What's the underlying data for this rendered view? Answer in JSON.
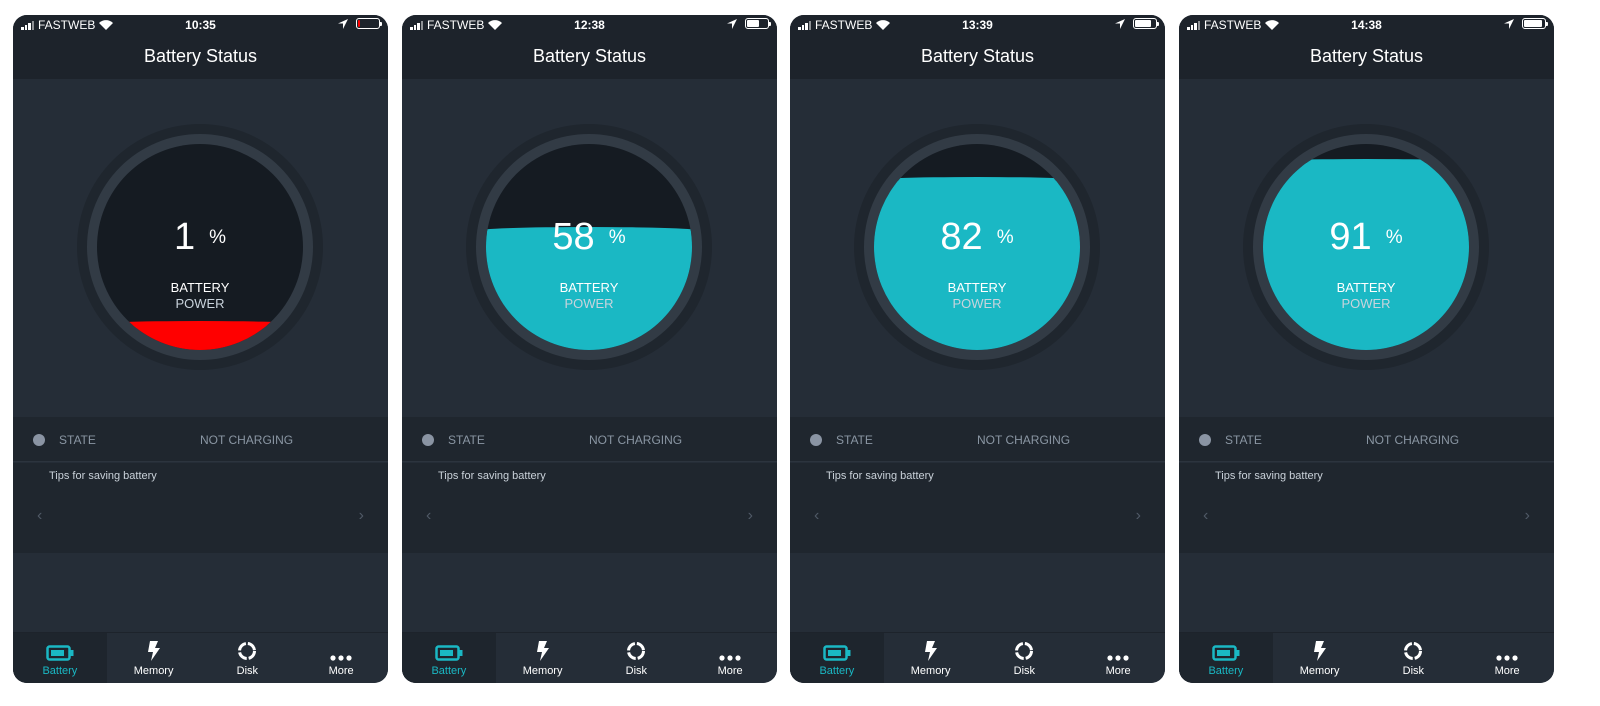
{
  "colors": {
    "accent": "#1ab8c4",
    "critical": "#ff0000",
    "background": "#252d37",
    "header": "#1d232b"
  },
  "phones": [
    {
      "carrier": "FASTWEB",
      "time": "10:35",
      "title": "Battery Status",
      "percent": 1,
      "percent_sign": "%",
      "label1": "BATTERY",
      "label2": "POWER",
      "fill_color": "#ff0000",
      "state_label": "STATE",
      "state_value": "NOT CHARGING",
      "tips": "Tips for saving battery",
      "prev": "‹",
      "next": "›",
      "tabs": [
        {
          "label": "Battery",
          "icon": "battery-icon"
        },
        {
          "label": "Memory",
          "icon": "bolt-icon"
        },
        {
          "label": "Disk",
          "icon": "disk-icon"
        },
        {
          "label": "More",
          "icon": "more-icon"
        }
      ],
      "active_tab": 0
    },
    {
      "carrier": "FASTWEB",
      "time": "12:38",
      "title": "Battery Status",
      "percent": 58,
      "percent_sign": "%",
      "label1": "BATTERY",
      "label2": "POWER",
      "fill_color": "#1ab8c4",
      "state_label": "STATE",
      "state_value": "NOT CHARGING",
      "tips": "Tips for saving battery",
      "prev": "‹",
      "next": "›",
      "tabs": [
        {
          "label": "Battery",
          "icon": "battery-icon"
        },
        {
          "label": "Memory",
          "icon": "bolt-icon"
        },
        {
          "label": "Disk",
          "icon": "disk-icon"
        },
        {
          "label": "More",
          "icon": "more-icon"
        }
      ],
      "active_tab": 0
    },
    {
      "carrier": "FASTWEB",
      "time": "13:39",
      "title": "Battery Status",
      "percent": 82,
      "percent_sign": "%",
      "label1": "BATTERY",
      "label2": "POWER",
      "fill_color": "#1ab8c4",
      "state_label": "STATE",
      "state_value": "NOT CHARGING",
      "tips": "Tips for saving battery",
      "prev": "‹",
      "next": "›",
      "tabs": [
        {
          "label": "Battery",
          "icon": "battery-icon"
        },
        {
          "label": "Memory",
          "icon": "bolt-icon"
        },
        {
          "label": "Disk",
          "icon": "disk-icon"
        },
        {
          "label": "More",
          "icon": "more-icon"
        }
      ],
      "active_tab": 0
    },
    {
      "carrier": "FASTWEB",
      "time": "14:38",
      "title": "Battery Status",
      "percent": 91,
      "percent_sign": "%",
      "label1": "BATTERY",
      "label2": "POWER",
      "fill_color": "#1ab8c4",
      "state_label": "STATE",
      "state_value": "NOT CHARGING",
      "tips": "Tips for saving battery",
      "prev": "‹",
      "next": "›",
      "tabs": [
        {
          "label": "Battery",
          "icon": "battery-icon"
        },
        {
          "label": "Memory",
          "icon": "bolt-icon"
        },
        {
          "label": "Disk",
          "icon": "disk-icon"
        },
        {
          "label": "More",
          "icon": "more-icon"
        }
      ],
      "active_tab": 0
    }
  ]
}
